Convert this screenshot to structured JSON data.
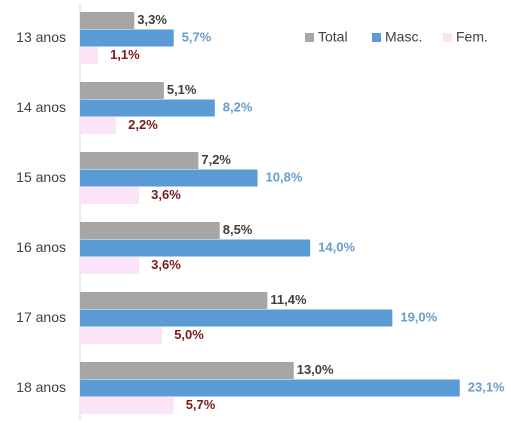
{
  "chart_data": {
    "type": "bar",
    "orientation": "horizontal",
    "categories": [
      "13 anos",
      "14 anos",
      "15 anos",
      "16 anos",
      "17 anos",
      "18 anos"
    ],
    "series": [
      {
        "name": "Total",
        "color": "#a6a6a6",
        "label_color": "#404040",
        "values": [
          3.3,
          5.1,
          7.2,
          8.5,
          11.4,
          13.0
        ],
        "value_labels": [
          "3,3%",
          "5,1%",
          "7,2%",
          "8,5%",
          "11,4%",
          "13,0%"
        ]
      },
      {
        "name": "Masc.",
        "color": "#5b9bd5",
        "label_color": "#6a9ccc",
        "values": [
          5.7,
          8.2,
          10.8,
          14.0,
          19.0,
          23.1
        ],
        "value_labels": [
          "5,7%",
          "8,2%",
          "10,8%",
          "14,0%",
          "19,0%",
          "23,1%"
        ]
      },
      {
        "name": "Fem.",
        "color": "#fce4f8",
        "label_color": "#7b1a1a",
        "values": [
          1.1,
          2.2,
          3.6,
          3.6,
          5.0,
          5.7
        ],
        "value_labels": [
          "1,1%",
          "2,2%",
          "3,6%",
          "3,6%",
          "5,0%",
          "5,7%"
        ]
      }
    ],
    "xlim": [
      0,
      25
    ],
    "legend": "top-right"
  }
}
